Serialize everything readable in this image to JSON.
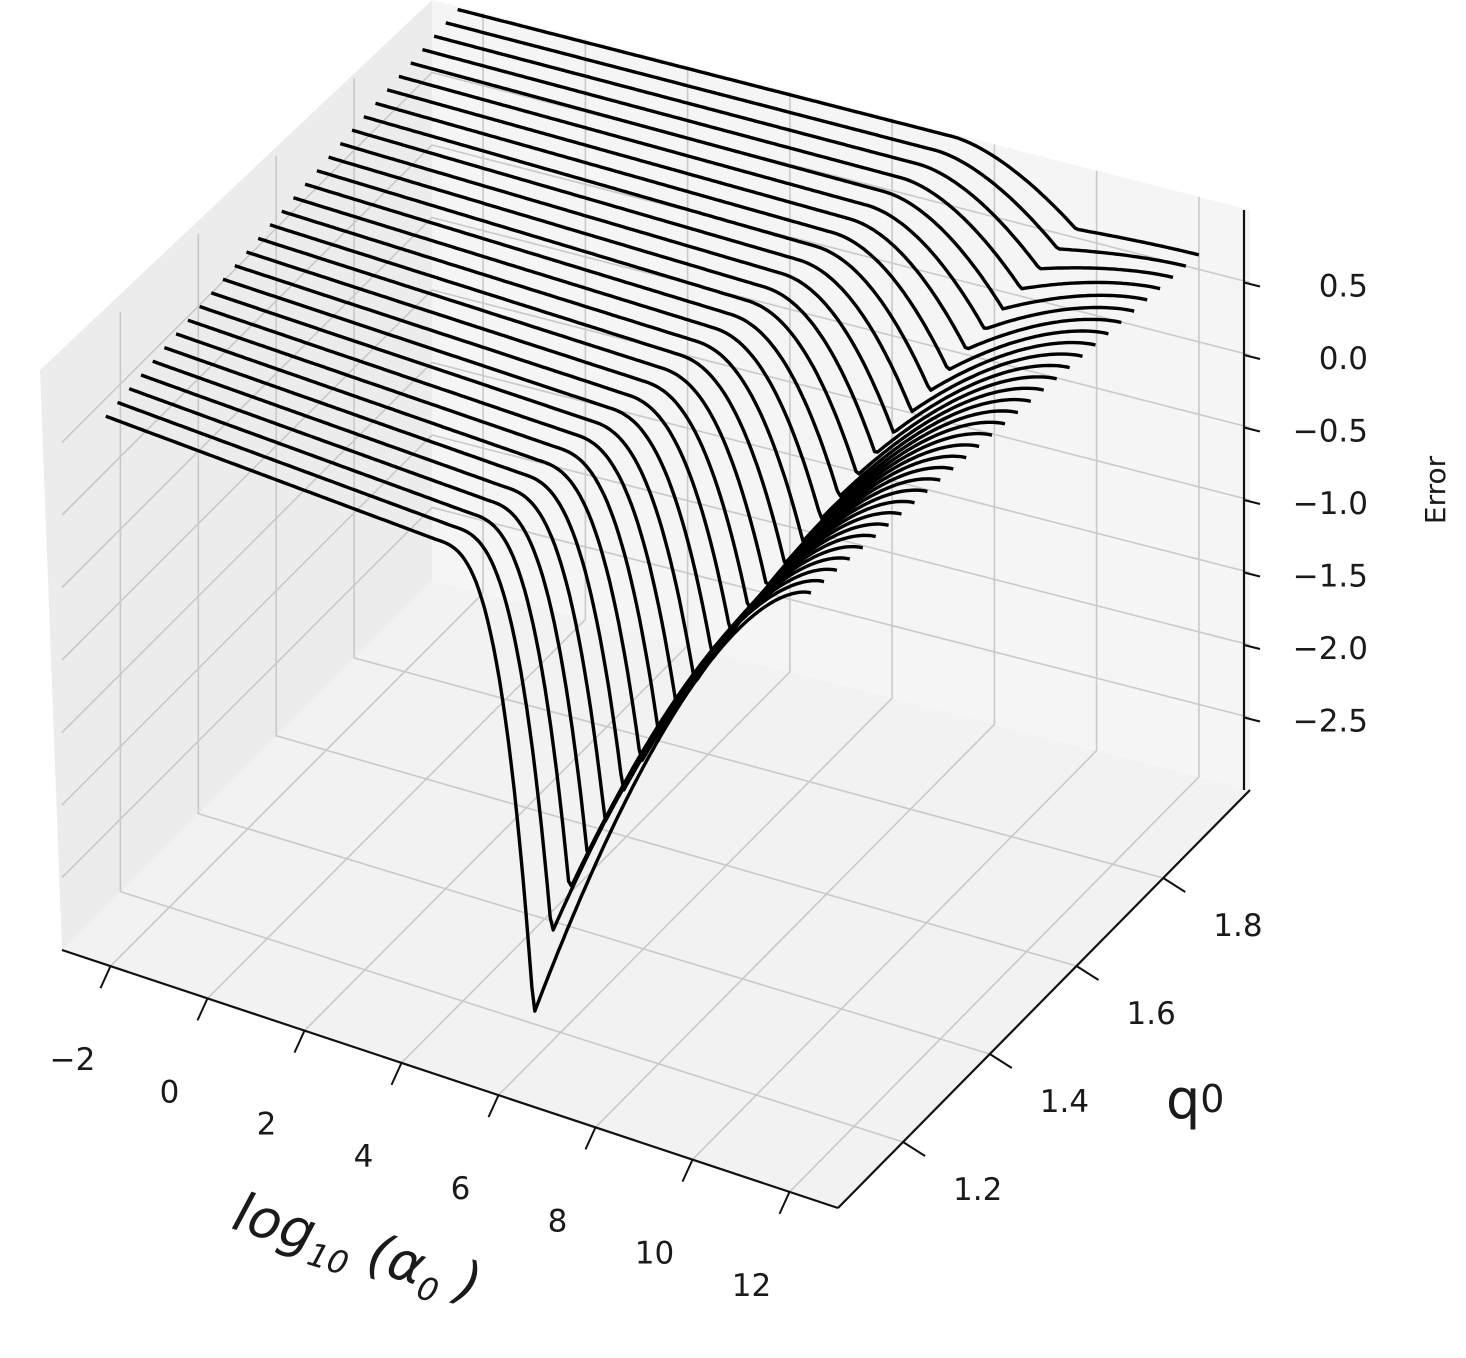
{
  "chart_data": {
    "type": "line",
    "projection": "3d",
    "xlabel": "log10 (α0 )",
    "xlabel_parts": {
      "base": "log",
      "sub": "10",
      "open": " (",
      "alpha": "α",
      "alpha_sub": "0",
      "close": " )"
    },
    "ylabel": "q0",
    "ylabel_parts": {
      "base": "q",
      "sub": "0"
    },
    "zlabel": "Error",
    "x_ticks": [
      -2,
      0,
      2,
      4,
      6,
      8,
      10,
      12
    ],
    "x_tick_labels": [
      "−2",
      "0",
      "2",
      "4",
      "6",
      "8",
      "10",
      "12"
    ],
    "y_ticks": [
      1.2,
      1.4,
      1.6,
      1.8
    ],
    "y_tick_labels": [
      "1.2",
      "1.4",
      "1.6",
      "1.8"
    ],
    "z_ticks": [
      0.5,
      0.0,
      -0.5,
      -1.0,
      -1.5,
      -2.0,
      -2.5
    ],
    "z_tick_labels": [
      "0.5",
      "0.0",
      "−0.5",
      "−1.0",
      "−1.5",
      "−2.0",
      "−2.5"
    ],
    "xlim": [
      -3,
      13
    ],
    "ylim": [
      1.05,
      2.0
    ],
    "zlim": [
      -3.0,
      1.0
    ],
    "grid": true,
    "legend": "none",
    "line_color": "#000000",
    "series_count": 31,
    "q0_range": [
      1.1,
      2.0
    ],
    "series_shape": {
      "plateau_error_at_low_q0": 0.5,
      "plateau_error_at_high_q0": 0.98,
      "min_error_low_q0": -2.55,
      "min_error_high_q0": 0.56,
      "min_location_log10_alpha0_low_q0": 6.3,
      "min_location_log10_alpha0_high_q0": 9.6,
      "end_error_at_log10_alpha0_12": [
        0.98,
        0.6
      ]
    }
  }
}
